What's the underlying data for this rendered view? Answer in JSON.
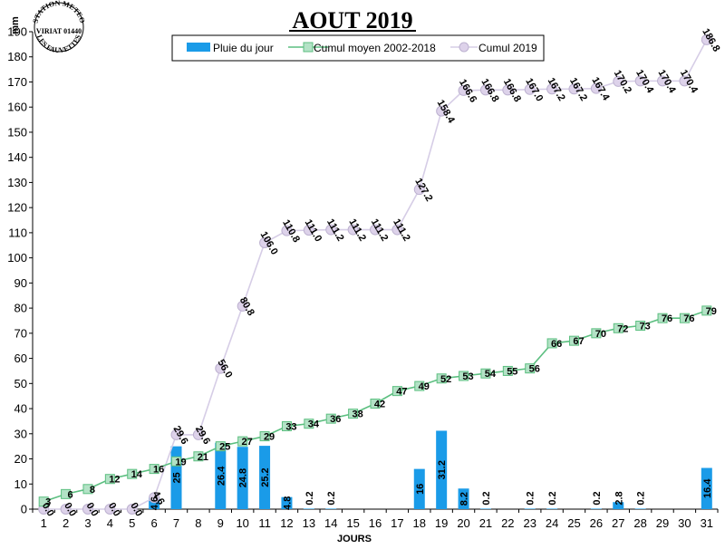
{
  "logo": {
    "line1": "STATION METEO",
    "line2": "VIRIAT 01440",
    "line3": "LES FAUVETTES"
  },
  "chart_data": {
    "type": "bar",
    "title": "AOUT 2019",
    "xlabel": "JOURS",
    "ylabel": "mm",
    "ylim": [
      0,
      190
    ],
    "ytick_step": 10,
    "grid": false,
    "legend_position": "top-center",
    "categories": [
      "1",
      "2",
      "3",
      "4",
      "5",
      "6",
      "7",
      "8",
      "9",
      "10",
      "11",
      "12",
      "13",
      "14",
      "15",
      "16",
      "17",
      "18",
      "19",
      "20",
      "21",
      "22",
      "23",
      "24",
      "25",
      "26",
      "27",
      "28",
      "29",
      "30",
      "31"
    ],
    "series": [
      {
        "name": "Pluie du jour",
        "kind": "bar",
        "color": "#1a9be8",
        "values": [
          0,
          0,
          0,
          0,
          0,
          4.6,
          25,
          0,
          26.4,
          24.8,
          25.2,
          4.8,
          0.2,
          0.2,
          0,
          0,
          0,
          16,
          31.2,
          8.2,
          0.2,
          0,
          0.2,
          0.2,
          0,
          0.2,
          2.8,
          0.2,
          0,
          0,
          16.4
        ],
        "labels": [
          "",
          "",
          "",
          "",
          "",
          "4.6",
          "25",
          "",
          "26.4",
          "24.8",
          "25.2",
          "4.8",
          "0.2",
          "0.2",
          "",
          "",
          "",
          "16",
          "31.2",
          "8.2",
          "0.2",
          "",
          "0.2",
          "0.2",
          "",
          "0.2",
          "2.8",
          "0.2",
          "",
          "",
          "16.4"
        ]
      },
      {
        "name": "Cumul moyen 2002-2018",
        "kind": "line",
        "marker": "square",
        "color": "#5cbf80",
        "marker_fill": "#b3e2c6",
        "values": [
          3,
          6,
          8,
          12,
          14,
          16,
          19,
          21,
          25,
          27,
          29,
          33,
          34,
          36,
          38,
          42,
          47,
          49,
          52,
          53,
          54,
          55,
          56,
          66,
          67,
          70,
          72,
          73,
          76,
          76,
          79
        ],
        "labels": [
          "3",
          "6",
          "8",
          "12",
          "14",
          "16",
          "19",
          "21",
          "25",
          "27",
          "29",
          "33",
          "34",
          "36",
          "38",
          "42",
          "47",
          "49",
          "52",
          "53",
          "54",
          "55",
          "56",
          "66",
          "67",
          "70",
          "72",
          "73",
          "76",
          "76",
          "79"
        ]
      },
      {
        "name": "Cumul 2019",
        "kind": "line",
        "marker": "circle",
        "color": "#d6cde6",
        "marker_fill": "#ddd2ea",
        "values": [
          0,
          0,
          0,
          0,
          0,
          4.6,
          29.6,
          29.6,
          56.0,
          80.8,
          106.0,
          110.8,
          111.0,
          111.2,
          111.2,
          111.2,
          111.2,
          127.2,
          158.4,
          166.6,
          166.8,
          166.8,
          167.0,
          167.2,
          167.2,
          167.4,
          170.2,
          170.4,
          170.4,
          170.4,
          186.8
        ],
        "labels": [
          "0.0",
          "0.0",
          "0.0",
          "0.0",
          "0.0",
          "4.6",
          "29.6",
          "29.6",
          "56.0",
          "80.8",
          "106.0",
          "110.8",
          "111.0",
          "111.2",
          "111.2",
          "111.2",
          "111.2",
          "127.2",
          "158.4",
          "166.6",
          "166.8",
          "166.8",
          "167.0",
          "167.2",
          "167.2",
          "167.4",
          "170.2",
          "170.4",
          "170.4",
          "170.4",
          "186.8"
        ]
      }
    ]
  }
}
